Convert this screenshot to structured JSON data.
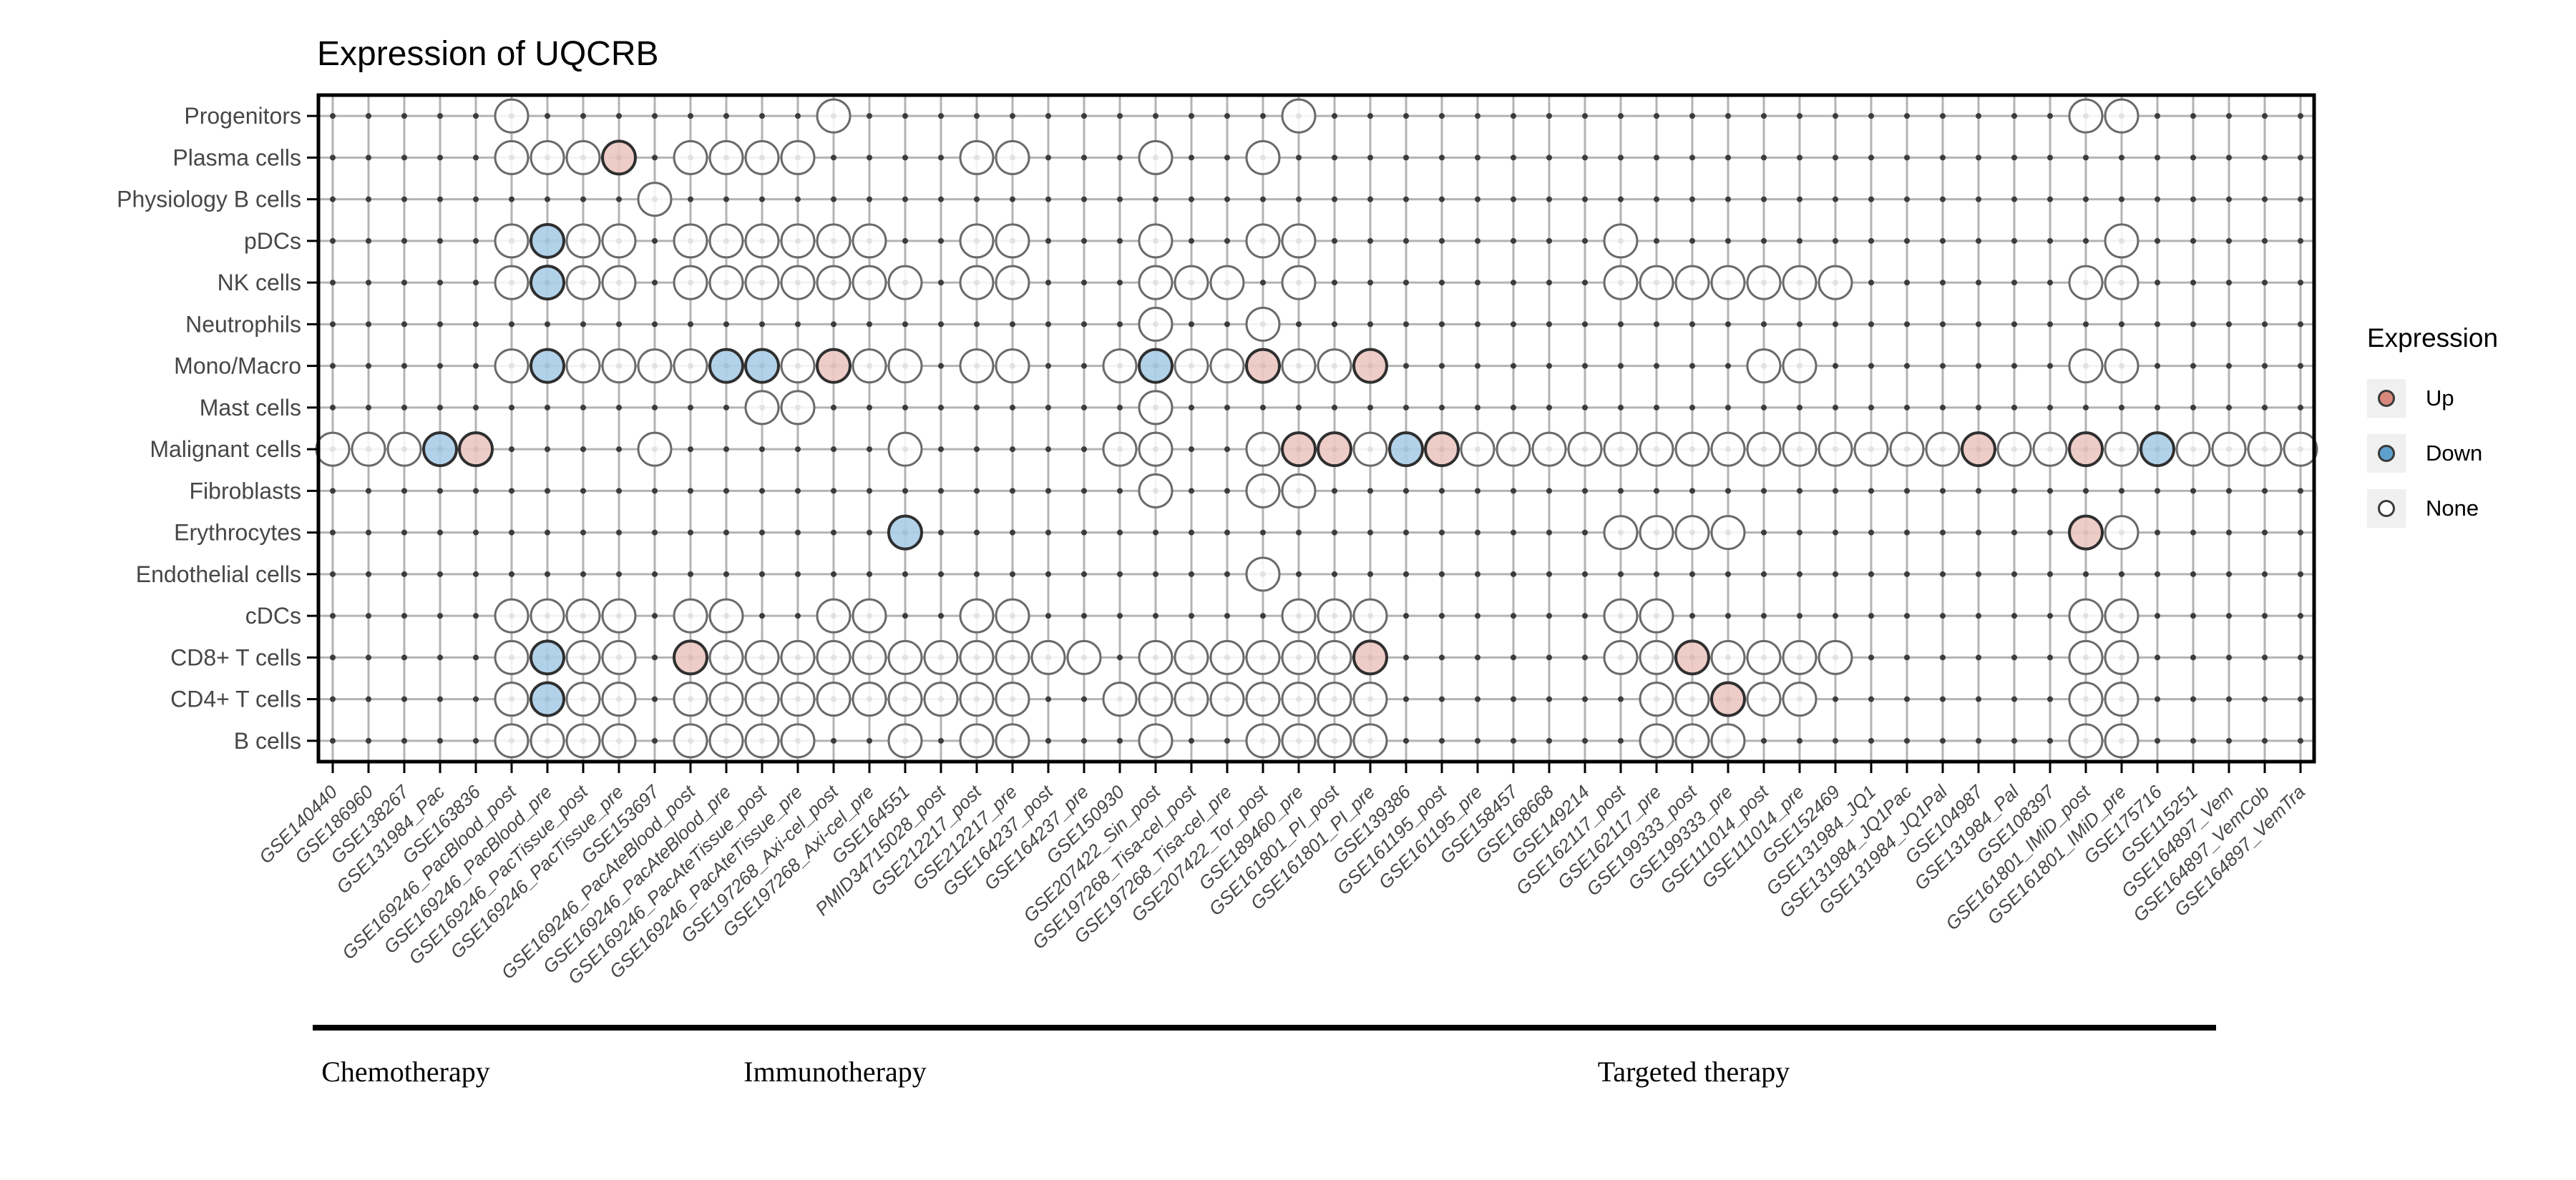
{
  "chart_data": {
    "type": "dot-matrix",
    "title": "Expression of UQCRB",
    "gene": "UQCRB",
    "rows": [
      "Progenitors",
      "Plasma cells",
      "Physiology B cells",
      "pDCs",
      "NK cells",
      "Neutrophils",
      "Mono/Macro",
      "Mast cells",
      "Malignant cells",
      "Fibroblasts",
      "Erythrocytes",
      "Endothelial cells",
      "cDCs",
      "CD8+ T cells",
      "CD4+ T cells",
      "B cells"
    ],
    "columns": [
      "GSE140440",
      "GSE186960",
      "GSE138267",
      "GSE131984_Pac",
      "GSE163836",
      "GSE169246_PacBlood_post",
      "GSE169246_PacBlood_pre",
      "GSE169246_PacTissue_post",
      "GSE169246_PacTissue_pre",
      "GSE153697",
      "GSE169246_PacAteBlood_post",
      "GSE169246_PacAteBlood_pre",
      "GSE169246_PacAteTissue_post",
      "GSE169246_PacAteTissue_pre",
      "GSE197268_Axi-cel_post",
      "GSE197268_Axi-cel_pre",
      "GSE164551",
      "PMID34715028_post",
      "GSE212217_post",
      "GSE212217_pre",
      "GSE164237_post",
      "GSE164237_pre",
      "GSE150930",
      "GSE207422_Sin_post",
      "GSE197268_Tisa-cel_post",
      "GSE197268_Tisa-cel_pre",
      "GSE207422_Tor_post",
      "GSE189460_pre",
      "GSE161801_PI_post",
      "GSE161801_PI_pre",
      "GSE139386",
      "GSE161195_post",
      "GSE161195_pre",
      "GSE158457",
      "GSE168668",
      "GSE149214",
      "GSE162117_post",
      "GSE162117_pre",
      "GSE199333_post",
      "GSE199333_pre",
      "GSE111014_post",
      "GSE111014_pre",
      "GSE152469",
      "GSE131984_JQ1",
      "GSE131984_JQ1Pac",
      "GSE131984_JQ1Pal",
      "GSE104987",
      "GSE131984_Pal",
      "GSE108397",
      "GSE161801_IMiD_post",
      "GSE161801_IMiD_pre",
      "GSE175716",
      "GSE115251",
      "GSE164897_Vem",
      "GSE164897_VemCob",
      "GSE164897_VemTra"
    ],
    "legend": {
      "title": "Expression",
      "entries": [
        {
          "label": "Up",
          "color": "#D9897C"
        },
        {
          "label": "Down",
          "color": "#5FA1CD"
        },
        {
          "label": "None",
          "color": "#FFFFFF"
        }
      ]
    },
    "groups": [
      {
        "label": "Chemotherapy",
        "start": 1,
        "end": 5
      },
      {
        "label": "Immunotherapy",
        "start": 6,
        "end": 24
      },
      {
        "label": "Targeted therapy",
        "start": 25,
        "end": 53
      }
    ],
    "value_codes": {
      "0": "None",
      "1": "Up",
      "2": "Down"
    },
    "colors": {
      "matrix_up": "#EDC8C2",
      "matrix_down": "#ABCEE8",
      "matrix_none": "#FFFFFF",
      "outline_none": "#6a6a6a",
      "outline_colored": "#2f2f2f",
      "grid_line": "#b3b3b3",
      "grid_dot": "#3c3c3c"
    },
    "points": [
      [
        0,
        5,
        0
      ],
      [
        0,
        14,
        0
      ],
      [
        0,
        27,
        0
      ],
      [
        0,
        49,
        0
      ],
      [
        0,
        50,
        0
      ],
      [
        1,
        5,
        0
      ],
      [
        1,
        6,
        0
      ],
      [
        1,
        7,
        0
      ],
      [
        1,
        8,
        1
      ],
      [
        1,
        10,
        0
      ],
      [
        1,
        11,
        0
      ],
      [
        1,
        12,
        0
      ],
      [
        1,
        13,
        0
      ],
      [
        1,
        18,
        0
      ],
      [
        1,
        19,
        0
      ],
      [
        1,
        23,
        0
      ],
      [
        1,
        26,
        0
      ],
      [
        2,
        9,
        0
      ],
      [
        3,
        5,
        0
      ],
      [
        3,
        6,
        2
      ],
      [
        3,
        7,
        0
      ],
      [
        3,
        8,
        0
      ],
      [
        3,
        10,
        0
      ],
      [
        3,
        11,
        0
      ],
      [
        3,
        12,
        0
      ],
      [
        3,
        13,
        0
      ],
      [
        3,
        14,
        0
      ],
      [
        3,
        15,
        0
      ],
      [
        3,
        18,
        0
      ],
      [
        3,
        19,
        0
      ],
      [
        3,
        23,
        0
      ],
      [
        3,
        26,
        0
      ],
      [
        3,
        27,
        0
      ],
      [
        3,
        36,
        0
      ],
      [
        3,
        50,
        0
      ],
      [
        4,
        5,
        0
      ],
      [
        4,
        6,
        2
      ],
      [
        4,
        7,
        0
      ],
      [
        4,
        8,
        0
      ],
      [
        4,
        10,
        0
      ],
      [
        4,
        11,
        0
      ],
      [
        4,
        12,
        0
      ],
      [
        4,
        13,
        0
      ],
      [
        4,
        14,
        0
      ],
      [
        4,
        15,
        0
      ],
      [
        4,
        16,
        0
      ],
      [
        4,
        18,
        0
      ],
      [
        4,
        19,
        0
      ],
      [
        4,
        23,
        0
      ],
      [
        4,
        24,
        0
      ],
      [
        4,
        25,
        0
      ],
      [
        4,
        27,
        0
      ],
      [
        4,
        36,
        0
      ],
      [
        4,
        37,
        0
      ],
      [
        4,
        38,
        0
      ],
      [
        4,
        39,
        0
      ],
      [
        4,
        40,
        0
      ],
      [
        4,
        41,
        0
      ],
      [
        4,
        42,
        0
      ],
      [
        4,
        49,
        0
      ],
      [
        4,
        50,
        0
      ],
      [
        5,
        23,
        0
      ],
      [
        5,
        26,
        0
      ],
      [
        6,
        5,
        0
      ],
      [
        6,
        6,
        2
      ],
      [
        6,
        7,
        0
      ],
      [
        6,
        8,
        0
      ],
      [
        6,
        9,
        0
      ],
      [
        6,
        10,
        0
      ],
      [
        6,
        11,
        2
      ],
      [
        6,
        12,
        2
      ],
      [
        6,
        13,
        0
      ],
      [
        6,
        14,
        1
      ],
      [
        6,
        15,
        0
      ],
      [
        6,
        16,
        0
      ],
      [
        6,
        18,
        0
      ],
      [
        6,
        19,
        0
      ],
      [
        6,
        22,
        0
      ],
      [
        6,
        23,
        2
      ],
      [
        6,
        24,
        0
      ],
      [
        6,
        25,
        0
      ],
      [
        6,
        26,
        1
      ],
      [
        6,
        27,
        0
      ],
      [
        6,
        28,
        0
      ],
      [
        6,
        29,
        1
      ],
      [
        6,
        40,
        0
      ],
      [
        6,
        41,
        0
      ],
      [
        6,
        49,
        0
      ],
      [
        6,
        50,
        0
      ],
      [
        7,
        12,
        0
      ],
      [
        7,
        13,
        0
      ],
      [
        7,
        23,
        0
      ],
      [
        8,
        0,
        0
      ],
      [
        8,
        1,
        0
      ],
      [
        8,
        2,
        0
      ],
      [
        8,
        3,
        2
      ],
      [
        8,
        4,
        1
      ],
      [
        8,
        9,
        0
      ],
      [
        8,
        16,
        0
      ],
      [
        8,
        22,
        0
      ],
      [
        8,
        23,
        0
      ],
      [
        8,
        26,
        0
      ],
      [
        8,
        27,
        1
      ],
      [
        8,
        28,
        1
      ],
      [
        8,
        29,
        0
      ],
      [
        8,
        30,
        2
      ],
      [
        8,
        31,
        1
      ],
      [
        8,
        32,
        0
      ],
      [
        8,
        33,
        0
      ],
      [
        8,
        34,
        0
      ],
      [
        8,
        35,
        0
      ],
      [
        8,
        36,
        0
      ],
      [
        8,
        37,
        0
      ],
      [
        8,
        38,
        0
      ],
      [
        8,
        39,
        0
      ],
      [
        8,
        40,
        0
      ],
      [
        8,
        41,
        0
      ],
      [
        8,
        42,
        0
      ],
      [
        8,
        43,
        0
      ],
      [
        8,
        44,
        0
      ],
      [
        8,
        45,
        0
      ],
      [
        8,
        46,
        1
      ],
      [
        8,
        47,
        0
      ],
      [
        8,
        48,
        0
      ],
      [
        8,
        49,
        1
      ],
      [
        8,
        50,
        0
      ],
      [
        8,
        51,
        2
      ],
      [
        8,
        52,
        0
      ],
      [
        8,
        53,
        0
      ],
      [
        8,
        54,
        0
      ],
      [
        8,
        55,
        0
      ],
      [
        9,
        23,
        0
      ],
      [
        9,
        26,
        0
      ],
      [
        9,
        27,
        0
      ],
      [
        10,
        16,
        2
      ],
      [
        10,
        36,
        0
      ],
      [
        10,
        37,
        0
      ],
      [
        10,
        38,
        0
      ],
      [
        10,
        39,
        0
      ],
      [
        10,
        49,
        1
      ],
      [
        10,
        50,
        0
      ],
      [
        11,
        26,
        0
      ],
      [
        12,
        5,
        0
      ],
      [
        12,
        6,
        0
      ],
      [
        12,
        7,
        0
      ],
      [
        12,
        8,
        0
      ],
      [
        12,
        10,
        0
      ],
      [
        12,
        11,
        0
      ],
      [
        12,
        14,
        0
      ],
      [
        12,
        15,
        0
      ],
      [
        12,
        18,
        0
      ],
      [
        12,
        19,
        0
      ],
      [
        12,
        27,
        0
      ],
      [
        12,
        28,
        0
      ],
      [
        12,
        29,
        0
      ],
      [
        12,
        36,
        0
      ],
      [
        12,
        37,
        0
      ],
      [
        12,
        49,
        0
      ],
      [
        12,
        50,
        0
      ],
      [
        13,
        5,
        0
      ],
      [
        13,
        6,
        2
      ],
      [
        13,
        7,
        0
      ],
      [
        13,
        8,
        0
      ],
      [
        13,
        10,
        1
      ],
      [
        13,
        11,
        0
      ],
      [
        13,
        12,
        0
      ],
      [
        13,
        13,
        0
      ],
      [
        13,
        14,
        0
      ],
      [
        13,
        15,
        0
      ],
      [
        13,
        16,
        0
      ],
      [
        13,
        17,
        0
      ],
      [
        13,
        18,
        0
      ],
      [
        13,
        19,
        0
      ],
      [
        13,
        20,
        0
      ],
      [
        13,
        21,
        0
      ],
      [
        13,
        23,
        0
      ],
      [
        13,
        24,
        0
      ],
      [
        13,
        25,
        0
      ],
      [
        13,
        26,
        0
      ],
      [
        13,
        27,
        0
      ],
      [
        13,
        28,
        0
      ],
      [
        13,
        29,
        1
      ],
      [
        13,
        36,
        0
      ],
      [
        13,
        37,
        0
      ],
      [
        13,
        38,
        1
      ],
      [
        13,
        39,
        0
      ],
      [
        13,
        40,
        0
      ],
      [
        13,
        41,
        0
      ],
      [
        13,
        42,
        0
      ],
      [
        13,
        49,
        0
      ],
      [
        13,
        50,
        0
      ],
      [
        14,
        5,
        0
      ],
      [
        14,
        6,
        2
      ],
      [
        14,
        7,
        0
      ],
      [
        14,
        8,
        0
      ],
      [
        14,
        10,
        0
      ],
      [
        14,
        11,
        0
      ],
      [
        14,
        12,
        0
      ],
      [
        14,
        13,
        0
      ],
      [
        14,
        14,
        0
      ],
      [
        14,
        15,
        0
      ],
      [
        14,
        16,
        0
      ],
      [
        14,
        17,
        0
      ],
      [
        14,
        18,
        0
      ],
      [
        14,
        19,
        0
      ],
      [
        14,
        22,
        0
      ],
      [
        14,
        23,
        0
      ],
      [
        14,
        24,
        0
      ],
      [
        14,
        25,
        0
      ],
      [
        14,
        26,
        0
      ],
      [
        14,
        27,
        0
      ],
      [
        14,
        28,
        0
      ],
      [
        14,
        29,
        0
      ],
      [
        14,
        37,
        0
      ],
      [
        14,
        38,
        0
      ],
      [
        14,
        39,
        1
      ],
      [
        14,
        40,
        0
      ],
      [
        14,
        41,
        0
      ],
      [
        14,
        49,
        0
      ],
      [
        14,
        50,
        0
      ],
      [
        15,
        5,
        0
      ],
      [
        15,
        6,
        0
      ],
      [
        15,
        7,
        0
      ],
      [
        15,
        8,
        0
      ],
      [
        15,
        10,
        0
      ],
      [
        15,
        11,
        0
      ],
      [
        15,
        12,
        0
      ],
      [
        15,
        13,
        0
      ],
      [
        15,
        16,
        0
      ],
      [
        15,
        18,
        0
      ],
      [
        15,
        19,
        0
      ],
      [
        15,
        23,
        0
      ],
      [
        15,
        26,
        0
      ],
      [
        15,
        27,
        0
      ],
      [
        15,
        28,
        0
      ],
      [
        15,
        29,
        0
      ],
      [
        15,
        37,
        0
      ],
      [
        15,
        38,
        0
      ],
      [
        15,
        39,
        0
      ],
      [
        15,
        49,
        0
      ],
      [
        15,
        50,
        0
      ]
    ]
  }
}
